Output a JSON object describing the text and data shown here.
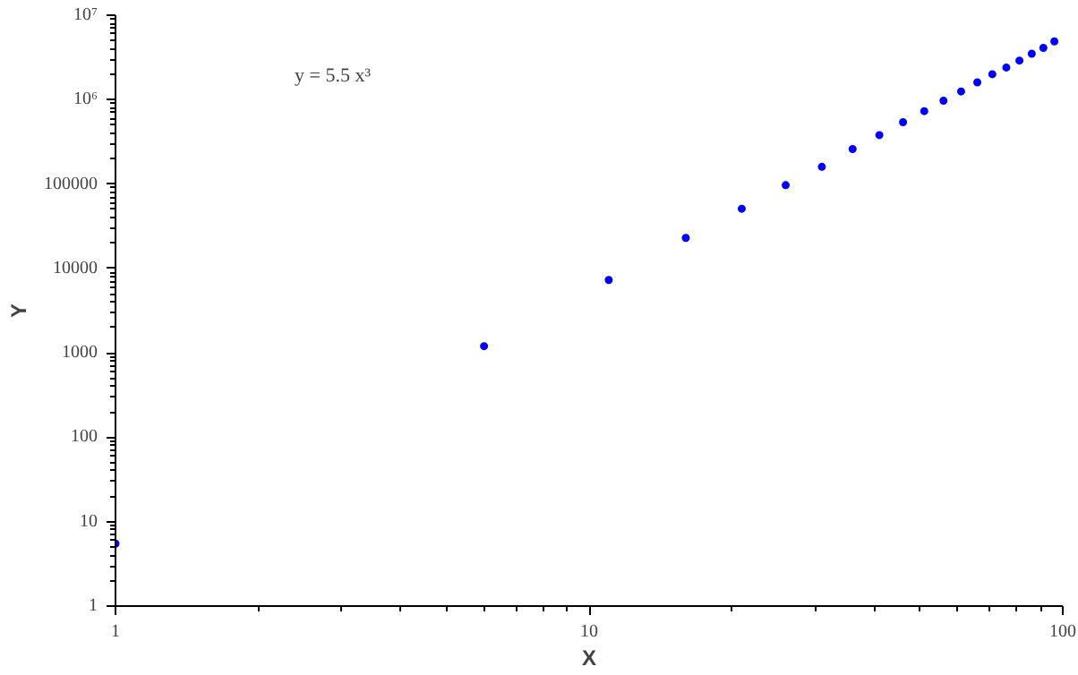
{
  "chart_data": {
    "type": "scatter",
    "xlabel": "X",
    "ylabel": "Y",
    "annotations": [
      "y = 5.5 x³"
    ],
    "log": "xy",
    "grid": false,
    "marker": "circle",
    "xlim": [
      1,
      100
    ],
    "ylim": [
      1,
      10000000
    ],
    "xticks": [
      1,
      10,
      100
    ],
    "yticks": [
      1,
      10,
      100,
      1000,
      10000,
      100000,
      {
        "value": 1000000,
        "label": "10⁶"
      },
      {
        "value": 10000000,
        "label": "10⁷"
      }
    ],
    "x": [
      1,
      6,
      11,
      16,
      21,
      26,
      31,
      36,
      41,
      46,
      51,
      56,
      61,
      66,
      71,
      76,
      81,
      86,
      91,
      96
    ],
    "series": [
      {
        "color": "#0000ff",
        "values": [
          5.5,
          1200,
          7300,
          23000,
          51000,
          97000,
          160000,
          260000,
          380000,
          540000,
          730000,
          970000,
          1250000,
          1600000,
          2000000,
          2400000,
          2900000,
          3500000,
          4100000,
          4900000
        ]
      }
    ]
  }
}
